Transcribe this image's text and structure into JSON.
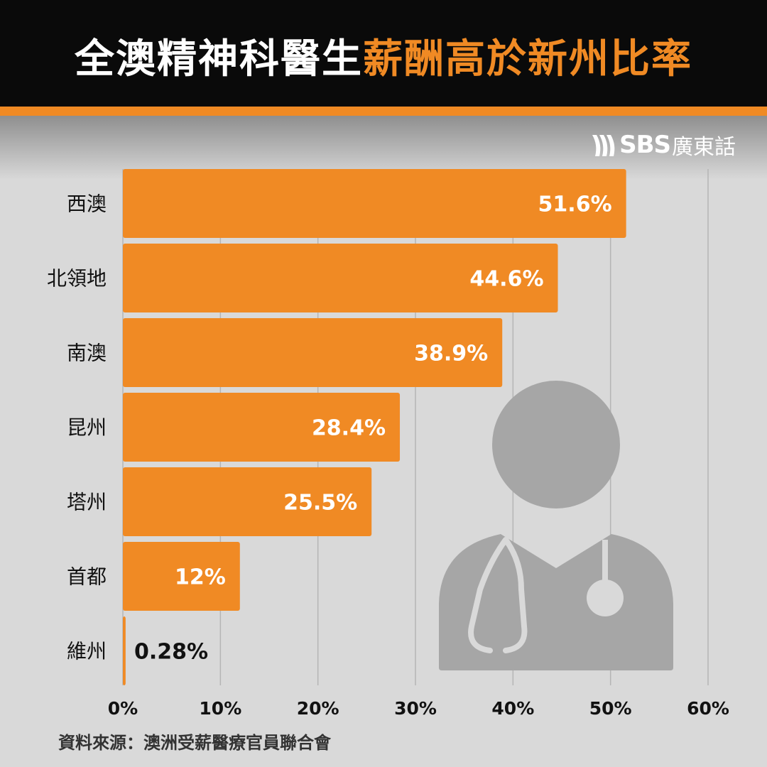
{
  "header": {
    "title_white": "全澳精神科醫生",
    "title_orange": "薪酬高於新州比率"
  },
  "logo": {
    "sbs": "SBS",
    "language": "廣東話"
  },
  "colors": {
    "accent": "#f08a24",
    "background": "#d9d9d9",
    "header": "#0a0a0a",
    "grid": "#b5b5b5",
    "silhouette": "#a6a6a6"
  },
  "chart_data": {
    "type": "bar",
    "orientation": "horizontal",
    "title": "全澳精神科醫生薪酬高於新州比率",
    "categories": [
      "西澳",
      "北領地",
      "南澳",
      "昆州",
      "塔州",
      "首都",
      "維州"
    ],
    "values": [
      51.6,
      44.6,
      38.9,
      28.4,
      25.5,
      12,
      0.28
    ],
    "data_labels": [
      "51.6%",
      "44.6%",
      "38.9%",
      "28.4%",
      "25.5%",
      "12%",
      "0.28%"
    ],
    "xlim": [
      0,
      60
    ],
    "xticks": [
      "0%",
      "10%",
      "20%",
      "30%",
      "40%",
      "50%",
      "60%"
    ],
    "grid": true,
    "xlabel": "",
    "ylabel": ""
  },
  "source": "資料來源：澳洲受薪醫療官員聯合會",
  "decoration": {
    "icon": "doctor-silhouette-icon"
  }
}
